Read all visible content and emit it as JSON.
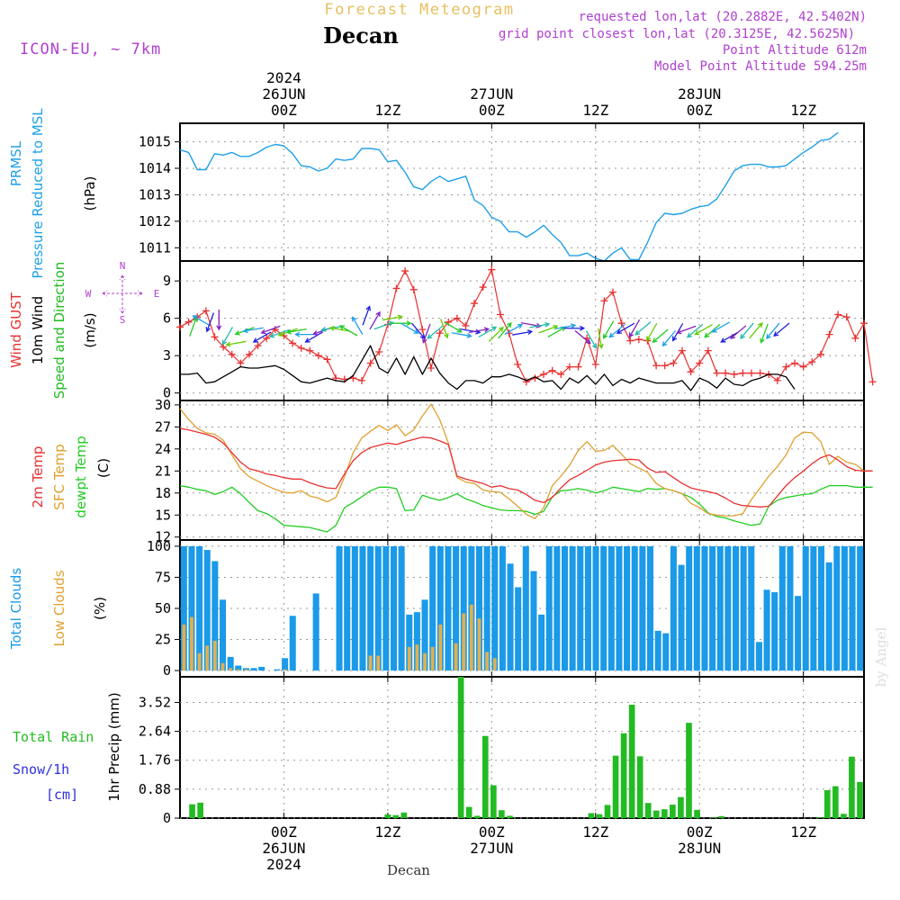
{
  "header": {
    "product": "Forecast Meteogram",
    "location": "Decan",
    "model": "ICON-EU, ~ 7km",
    "requested": "requested lon,lat (20.2882E, 42.5402N)",
    "gridpoint": "grid point closest lon,lat (20.3125E, 42.5625N)",
    "point_alt": "Point Altitude 612m",
    "model_alt": "Model Point Altitude 594.25m",
    "watermark": "by Angel",
    "footer_location": "Decan"
  },
  "time_axis": {
    "start": "2024-06-25 12Z",
    "end": "2024-06-28 19Z",
    "step_hours": 1,
    "top_labels": [
      {
        "lines": [
          "2024",
          "26JUN",
          "00Z"
        ],
        "hour": 12
      },
      {
        "lines": [
          "12Z"
        ],
        "hour": 24
      },
      {
        "lines": [
          "27JUN",
          "00Z"
        ],
        "hour": 36
      },
      {
        "lines": [
          "12Z"
        ],
        "hour": 48
      },
      {
        "lines": [
          "28JUN",
          "00Z"
        ],
        "hour": 60
      },
      {
        "lines": [
          "12Z"
        ],
        "hour": 72
      }
    ],
    "bottom_labels": [
      {
        "lines": [
          "00Z",
          "26JUN",
          "2024"
        ],
        "hour": 12
      },
      {
        "lines": [
          "12Z"
        ],
        "hour": 24
      },
      {
        "lines": [
          "00Z",
          "27JUN"
        ],
        "hour": 36
      },
      {
        "lines": [
          "12Z"
        ],
        "hour": 48
      },
      {
        "lines": [
          "00Z",
          "28JUN"
        ],
        "hour": 60
      },
      {
        "lines": [
          "12Z"
        ],
        "hour": 72
      }
    ]
  },
  "colors": {
    "pressure": "#1fa0e8",
    "gust": "#e83030",
    "wind": "#000000",
    "wind_dir": "#22bb22",
    "temp2m": "#e83030",
    "sfc": "#e0a030",
    "dewpt": "#22cc22",
    "total_clouds": "#1a9ae8",
    "low_clouds": "#e0b050",
    "rain": "#22bb22",
    "snow": "#3030e0",
    "compass": "#b040d0",
    "header_purple": "#b040d0",
    "title_gold": "#e8c060"
  },
  "chart_data": [
    {
      "type": "line",
      "panel": "pressure",
      "ylabel_lines": [
        "PRMSL",
        "Pressure Reduced to MSL",
        "(hPa)"
      ],
      "yticks": [
        1011,
        1012,
        1013,
        1014,
        1015
      ],
      "ylim": [
        1010.5,
        1015.7
      ],
      "series": [
        {
          "values": [
            1014.7,
            1014.6,
            1013.95,
            1013.95,
            1014.55,
            1014.5,
            1014.6,
            1014.45,
            1014.45,
            1014.6,
            1014.8,
            1014.9,
            1014.85,
            1014.55,
            1014.1,
            1014.05,
            1013.9,
            1014.0,
            1014.35,
            1014.3,
            1014.35,
            1014.75,
            1014.75,
            1014.7,
            1014.25,
            1014.3,
            1013.85,
            1013.3,
            1013.2,
            1013.5,
            1013.7,
            1013.5,
            1013.6,
            1013.7,
            1012.8,
            1012.6,
            1012.15,
            1012.0,
            1011.6,
            1011.6,
            1011.4,
            1011.6,
            1011.85,
            1011.5,
            1011.2,
            1010.7,
            1010.7,
            1010.8,
            1010.6,
            1010.5,
            1010.8,
            1011.0,
            1010.55,
            1010.55,
            1011.2,
            1011.95,
            1012.3,
            1012.25,
            1012.3,
            1012.45,
            1012.55,
            1012.6,
            1012.85,
            1013.35,
            1013.9,
            1014.1,
            1014.15,
            1014.15,
            1014.05,
            1014.05,
            1014.1,
            1014.35,
            1014.6,
            1014.8,
            1015.05,
            1015.1,
            1015.35
          ]
        }
      ]
    },
    {
      "type": "line",
      "panel": "wind",
      "ylabel_lines": [
        "Wind GUST",
        "10m Wind",
        "Speed and Direction",
        "(m/s)"
      ],
      "yticks": [
        0,
        3,
        6,
        9
      ],
      "ylim": [
        -0.6,
        10.6
      ],
      "compass": [
        "N",
        "W",
        "E",
        "S"
      ],
      "series": [
        {
          "name": "Wind GUST",
          "values": [
            5.3,
            5.7,
            6.1,
            6.6,
            4.5,
            3.7,
            3.1,
            2.4,
            3.1,
            3.8,
            4.4,
            5.1,
            4.6,
            4.0,
            3.6,
            3.4,
            3.0,
            2.7,
            1.2,
            1.1,
            1.2,
            1.0,
            2.4,
            3.3,
            5.5,
            8.4,
            9.8,
            8.3,
            5.1,
            2.0,
            4.8,
            5.7,
            6.0,
            5.4,
            7.2,
            8.5,
            9.9,
            6.3,
            4.8,
            2.3,
            0.9,
            1.2,
            1.5,
            1.8,
            1.5,
            2.1,
            2.1,
            4.4,
            2.3,
            7.4,
            8.1,
            5.6,
            4.2,
            4.3,
            4.2,
            2.2,
            2.2,
            2.4,
            3.4,
            1.7,
            2.4,
            3.4,
            1.6,
            1.6,
            1.5,
            1.6,
            1.6,
            1.6,
            1.5,
            1.0,
            2.1,
            2.4,
            2.1,
            2.5,
            3.1,
            4.7,
            6.3,
            6.1,
            4.4,
            5.6,
            0.9
          ]
        },
        {
          "name": "10m Wind",
          "values": [
            1.5,
            1.5,
            1.6,
            0.8,
            0.9,
            1.3,
            1.7,
            2.1,
            2.0,
            2.0,
            2.1,
            2.2,
            1.9,
            1.4,
            0.9,
            0.8,
            1.0,
            1.2,
            1.0,
            0.9,
            1.4,
            2.6,
            3.8,
            2.0,
            1.6,
            2.8,
            1.5,
            2.9,
            1.5,
            2.8,
            1.6,
            0.8,
            0.3,
            1.0,
            1.0,
            0.8,
            1.3,
            1.3,
            1.5,
            1.3,
            1.0,
            1.3,
            0.9,
            1.0,
            0.3,
            1.2,
            0.8,
            1.4,
            0.7,
            1.5,
            0.6,
            1.1,
            0.8,
            1.2,
            1.0,
            0.8,
            0.8,
            0.8,
            1.0,
            0.2,
            1.2,
            0.9,
            0.4,
            1.2,
            0.7,
            0.6,
            1.0,
            1.2,
            1.5,
            1.5,
            1.3,
            0.3
          ]
        }
      ],
      "arrow_y": [
        5.3,
        5.8,
        5.7,
        5.9,
        4.6,
        4.0,
        5.0,
        5.1,
        4.5,
        5.1,
        4.8,
        4.9,
        5.0,
        4.7,
        4.5,
        5.0,
        5.2,
        5.1,
        5.0,
        5.4,
        6.2,
        5.8,
        5.4,
        6.0,
        5.6,
        5.2,
        5.0,
        4.8,
        4.9,
        5.2,
        5.3,
        4.7,
        5.0,
        5.0,
        4.9,
        4.7,
        5.0,
        5.1,
        4.8,
        5.5,
        5.4,
        5.1,
        4.9,
        5.3,
        5.2,
        4.5,
        4.3,
        4.4,
        5.1,
        5.0,
        5.2,
        5.2,
        5.2,
        4.9,
        4.6,
        4.4,
        4.9,
        5.1,
        5.0,
        5.1,
        5.0,
        5.3,
        4.5,
        4.9,
        5.0,
        5.0,
        4.8,
        5.0,
        5.1
      ],
      "arrow_dir_deg": [
        20,
        300,
        200,
        180,
        210,
        260,
        250,
        260,
        240,
        250,
        250,
        250,
        260,
        270,
        240,
        250,
        260,
        280,
        300,
        330,
        20,
        30,
        70,
        80,
        90,
        120,
        140,
        200,
        230,
        160,
        120,
        100,
        100,
        80,
        60,
        45,
        40,
        60,
        80,
        100,
        80,
        70,
        60,
        80,
        90,
        130,
        150,
        170,
        210,
        230,
        240,
        210,
        230,
        210,
        230,
        220,
        210,
        250,
        230,
        240,
        230,
        240,
        240,
        230,
        220,
        40,
        200,
        220,
        230
      ]
    },
    {
      "type": "line",
      "panel": "temperature",
      "ylabel_lines": [
        "2m Temp",
        "SFC Temp",
        "dewpt Temp",
        "(C)"
      ],
      "yticks": [
        12,
        15,
        18,
        21,
        24,
        27,
        30
      ],
      "ylim": [
        11.6,
        30.6
      ],
      "series": [
        {
          "name": "2m Temp",
          "values": [
            26.8,
            26.6,
            26.3,
            26.0,
            25.6,
            24.8,
            23.5,
            22.2,
            21.3,
            21.0,
            20.6,
            20.4,
            20.1,
            19.9,
            19.9,
            19.4,
            19.0,
            18.7,
            18.6,
            20.6,
            22.4,
            23.5,
            24.2,
            24.5,
            24.8,
            24.6,
            25.0,
            25.3,
            25.6,
            25.5,
            25.1,
            24.6,
            20.3,
            19.9,
            19.6,
            19.3,
            18.8,
            19.0,
            18.6,
            18.4,
            17.8,
            17.0,
            16.7,
            17.4,
            18.7,
            19.8,
            20.4,
            21.1,
            21.8,
            22.2,
            22.4,
            22.5,
            22.6,
            22.5,
            21.4,
            20.8,
            20.9,
            20.1,
            19.3,
            18.7,
            18.4,
            18.2,
            17.9,
            17.3,
            16.6,
            16.3,
            16.2,
            16.1,
            16.2,
            17.6,
            19.0,
            20.1,
            21.0,
            22.0,
            22.8,
            23.2,
            22.5,
            21.6,
            21.1,
            21.0,
            21.0
          ]
        },
        {
          "name": "SFC Temp",
          "values": [
            29.5,
            28.0,
            26.8,
            26.2,
            26.0,
            25.2,
            23.2,
            21.3,
            20.2,
            19.6,
            19.0,
            18.5,
            18.1,
            18.0,
            18.3,
            17.6,
            17.3,
            16.8,
            17.4,
            20.2,
            23.5,
            25.5,
            26.4,
            27.2,
            26.5,
            27.3,
            25.8,
            26.6,
            28.5,
            30.1,
            28.0,
            24.8,
            20.1,
            19.5,
            19.3,
            18.4,
            18.2,
            18.1,
            17.2,
            16.2,
            15.1,
            14.5,
            16.0,
            19.0,
            20.3,
            21.8,
            23.8,
            25.0,
            23.7,
            23.8,
            24.5,
            23.3,
            22.0,
            21.4,
            20.8,
            19.3,
            18.6,
            18.3,
            17.9,
            16.6,
            16.0,
            15.2,
            15.0,
            14.9,
            14.9,
            15.2,
            17.1,
            18.7,
            20.3,
            21.6,
            23.2,
            25.5,
            26.3,
            26.2,
            25.0,
            21.9,
            23.0,
            22.2,
            21.9,
            21.0,
            21.0
          ]
        },
        {
          "name": "dewpt Temp",
          "values": [
            19.0,
            18.8,
            18.5,
            18.3,
            17.8,
            18.2,
            18.8,
            17.9,
            16.7,
            15.6,
            15.2,
            14.5,
            13.6,
            13.5,
            13.4,
            13.3,
            13.0,
            12.7,
            13.6,
            16.0,
            16.7,
            17.5,
            18.3,
            18.8,
            18.8,
            18.6,
            15.6,
            15.7,
            17.7,
            17.3,
            17.0,
            17.4,
            17.9,
            17.2,
            16.8,
            16.3,
            16.0,
            15.7,
            15.6,
            15.6,
            15.5,
            15.1,
            15.5,
            17.5,
            18.3,
            18.4,
            18.6,
            18.4,
            18.0,
            18.3,
            18.8,
            18.6,
            18.4,
            18.2,
            18.6,
            18.5,
            18.6,
            18.3,
            17.9,
            17.4,
            16.5,
            15.3,
            14.8,
            14.6,
            14.2,
            13.9,
            13.6,
            13.8,
            16.2,
            17.0,
            17.4,
            17.6,
            17.8,
            17.9,
            18.5,
            19.0,
            19.0,
            19.0,
            18.8,
            18.8,
            18.8
          ]
        }
      ]
    },
    {
      "type": "bar",
      "panel": "clouds",
      "ylabel_lines": [
        "Total Clouds",
        "Low Clouds",
        "(%)"
      ],
      "yticks": [
        0,
        25,
        50,
        75,
        100
      ],
      "ylim": [
        -5,
        105
      ],
      "series": [
        {
          "name": "Total Clouds",
          "values": [
            100,
            100,
            100,
            97,
            88,
            57,
            11,
            4,
            2,
            2,
            3,
            0,
            1,
            10,
            44,
            0,
            0,
            62,
            0,
            0,
            100,
            100,
            100,
            100,
            100,
            100,
            100,
            100,
            100,
            45,
            47,
            57,
            100,
            100,
            100,
            100,
            100,
            100,
            100,
            100,
            100,
            100,
            86,
            67,
            100,
            80,
            45,
            100,
            100,
            100,
            100,
            100,
            100,
            100,
            100,
            100,
            100,
            100,
            100,
            100,
            100,
            32,
            30,
            100,
            85,
            100,
            100,
            100,
            100,
            100,
            100,
            100,
            100,
            100,
            23,
            65,
            63,
            100,
            100,
            60,
            100,
            100,
            100,
            87,
            100,
            100,
            100,
            100
          ]
        },
        {
          "name": "Low Clouds",
          "values": [
            37,
            43,
            14,
            20,
            24,
            6,
            2,
            1,
            1,
            0,
            0,
            0,
            0,
            1,
            0,
            0,
            0,
            0,
            0,
            0,
            0,
            0,
            0,
            0,
            12,
            12,
            0,
            0,
            0,
            19,
            21,
            14,
            19,
            37,
            0,
            22,
            46,
            53,
            42,
            15,
            10,
            0,
            0,
            0,
            0,
            0,
            0,
            0,
            0,
            0,
            0,
            0,
            0,
            0,
            0,
            0,
            0,
            0,
            0,
            0,
            0,
            0,
            0,
            0,
            0,
            0,
            0,
            0,
            0,
            0,
            0,
            0,
            0,
            0,
            0,
            0,
            0,
            0,
            0,
            0,
            0,
            0,
            0,
            0,
            0,
            0,
            0,
            0
          ]
        }
      ]
    },
    {
      "type": "bar",
      "panel": "precip",
      "ylabel_lines": [
        "1hr Precip (mm)"
      ],
      "left_labels": [
        "Total  Rain",
        "Snow/1h",
        "[cm]"
      ],
      "yticks": [
        0,
        0.88,
        1.76,
        2.64,
        3.52
      ],
      "ytick_labels": [
        "0",
        "0.88",
        "1.76",
        "2.64",
        "3.52"
      ],
      "ylim": [
        0,
        4.3
      ],
      "series": [
        {
          "name": "Total Rain",
          "values": [
            0,
            0.42,
            0.47,
            0,
            0,
            0,
            0,
            0,
            0,
            0,
            0,
            0,
            0,
            0,
            0,
            0,
            0,
            0,
            0,
            0,
            0,
            0,
            0,
            0,
            0,
            0.11,
            0.09,
            0.17,
            0,
            0,
            0,
            0,
            0,
            0,
            4.3,
            0.34,
            0.07,
            2.5,
            1.0,
            0.24,
            0.07,
            0,
            0,
            0,
            0,
            0,
            0,
            0,
            0,
            0,
            0.15,
            0.12,
            0.4,
            1.9,
            2.58,
            3.45,
            1.88,
            0.46,
            0.23,
            0.27,
            0.41,
            0.64,
            2.9,
            0.25,
            0,
            0.02,
            0.06,
            0,
            0,
            0,
            0,
            0,
            0,
            0,
            0,
            0,
            0,
            0,
            0.02,
            0.85,
            0.97,
            0.13,
            1.87,
            1.1
          ]
        }
      ]
    }
  ]
}
